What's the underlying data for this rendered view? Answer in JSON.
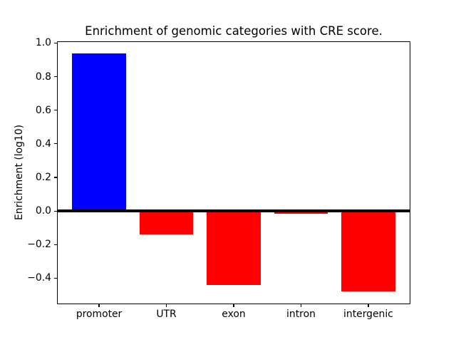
{
  "chart_data": {
    "type": "bar",
    "title": "Enrichment of genomic categories with CRE score.",
    "xlabel": "",
    "ylabel": "Enrichment (log10)",
    "categories": [
      "promoter",
      "UTR",
      "exon",
      "intron",
      "intergenic"
    ],
    "values": [
      0.94,
      -0.14,
      -0.44,
      -0.015,
      -0.48
    ],
    "bar_colors": [
      "#0000ff",
      "#ff0000",
      "#ff0000",
      "#ff0000",
      "#ff0000"
    ],
    "ylim": [
      -0.555,
      1.01
    ],
    "yticks": {
      "values": [
        1.0,
        0.8,
        0.6,
        0.4,
        0.2,
        0.0,
        -0.2,
        -0.4
      ],
      "labels": [
        "1.0",
        "0.8",
        "0.6",
        "0.4",
        "0.2",
        "0.0",
        "−0.2",
        "−0.4"
      ]
    },
    "zero_line": {
      "color": "#000000"
    },
    "frame_color": "#000000",
    "background": "#ffffff",
    "grid": false,
    "legend": null
  }
}
